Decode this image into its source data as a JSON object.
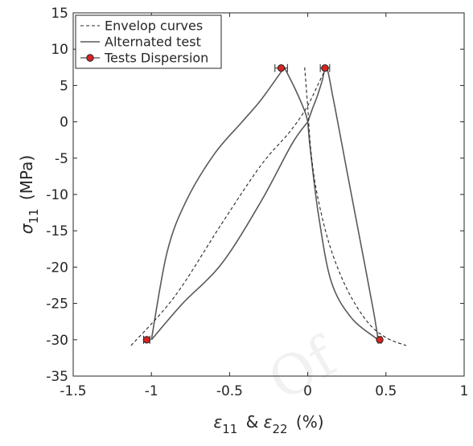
{
  "chart_data": {
    "type": "line",
    "xlabel": "ε11 & ε22 (%)",
    "ylabel": "σ11 (MPa)",
    "xlim": [
      -1.5,
      1
    ],
    "ylim": [
      -35,
      15
    ],
    "x_ticks": [
      "-1.5",
      "-1",
      "-0.5",
      "0",
      "0.5",
      "1"
    ],
    "y_ticks": [
      "15",
      "10",
      "5",
      "0",
      "-5",
      "-10",
      "-15",
      "-20",
      "-25",
      "-30",
      "-35"
    ],
    "legend_position": "top-left",
    "grid": false,
    "series": [
      {
        "name": "Envelop curves",
        "style": "dashed",
        "color": "#262626",
        "curves": [
          [
            [
              -1.13,
              -30.8
            ],
            [
              -0.85,
              -24
            ],
            [
              -0.55,
              -14
            ],
            [
              -0.3,
              -6
            ],
            [
              -0.12,
              -1.5
            ],
            [
              -0.02,
              1.5
            ],
            [
              0.03,
              3.5
            ],
            [
              0.08,
              5.8
            ],
            [
              0.12,
              7.5
            ]
          ],
          [
            [
              -0.02,
              7.5
            ],
            [
              0,
              2
            ],
            [
              0.02,
              -4
            ],
            [
              0.06,
              -10
            ],
            [
              0.14,
              -17
            ],
            [
              0.25,
              -23
            ],
            [
              0.38,
              -27.5
            ],
            [
              0.5,
              -29.7
            ],
            [
              0.63,
              -30.8
            ]
          ]
        ]
      },
      {
        "name": "Alternated test",
        "style": "solid",
        "color": "#595959",
        "curves": [
          [
            [
              0,
              0
            ],
            [
              0.03,
              1.8
            ],
            [
              0.06,
              3.5
            ],
            [
              0.09,
              5.5
            ],
            [
              0.12,
              7.5
            ],
            [
              0.16,
              3.5
            ],
            [
              0.2,
              -1
            ],
            [
              0.27,
              -9
            ],
            [
              0.35,
              -18
            ],
            [
              0.42,
              -26
            ],
            [
              0.45,
              -30
            ]
          ],
          [
            [
              0.45,
              -30
            ],
            [
              0.28,
              -27
            ],
            [
              0.15,
              -22
            ],
            [
              0.07,
              -13
            ],
            [
              0.02,
              -4.5
            ],
            [
              0,
              0
            ]
          ],
          [
            [
              0,
              0
            ],
            [
              -0.1,
              -3
            ],
            [
              -0.3,
              -11
            ],
            [
              -0.55,
              -19.5
            ],
            [
              -0.8,
              -25
            ],
            [
              -1.0,
              -30
            ]
          ],
          [
            [
              -1.0,
              -30
            ],
            [
              -0.9,
              -18
            ],
            [
              -0.78,
              -11
            ],
            [
              -0.6,
              -4.5
            ],
            [
              -0.42,
              0
            ],
            [
              -0.3,
              3
            ],
            [
              -0.15,
              7.5
            ]
          ],
          [
            [
              -0.15,
              7.5
            ],
            [
              -0.08,
              4.5
            ],
            [
              -0.02,
              1.5
            ],
            [
              0,
              0
            ]
          ]
        ]
      },
      {
        "name": "Tests Dispersion",
        "style": "markers",
        "color": "#d62424",
        "points": [
          {
            "x": -0.17,
            "y": 7.4,
            "xerr": 0.04
          },
          {
            "x": 0.11,
            "y": 7.4,
            "xerr": 0.03
          },
          {
            "x": -1.03,
            "y": -30,
            "xerr": 0.02
          },
          {
            "x": 0.46,
            "y": -30,
            "xerr": 0.01
          }
        ]
      }
    ]
  },
  "watermark": "Of"
}
